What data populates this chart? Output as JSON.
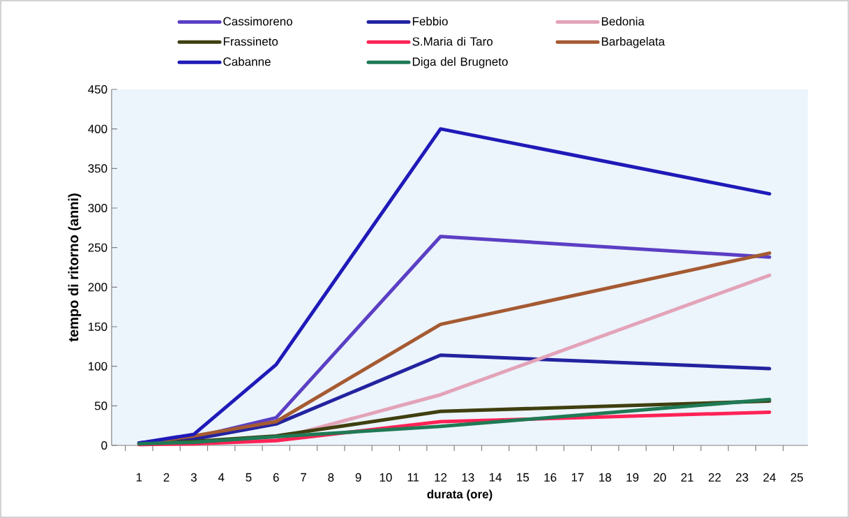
{
  "chart_data": {
    "type": "line",
    "xlabel": "durata (ore)",
    "ylabel": "tempo di ritorno (anni)",
    "x": [
      1,
      3,
      6,
      12,
      24
    ],
    "series": [
      {
        "name": "Cassimoreno",
        "color": "#5b3fc4",
        "values": [
          3,
          10,
          35,
          264,
          238
        ]
      },
      {
        "name": "Febbio",
        "color": "#2323a0",
        "values": [
          3,
          8,
          27,
          114,
          97
        ]
      },
      {
        "name": "Bedonia",
        "color": "#e3a3b8",
        "values": [
          1,
          2,
          8,
          64,
          215
        ]
      },
      {
        "name": "Frassineto",
        "color": "#3f3f0f",
        "values": [
          2,
          5,
          12,
          43,
          56
        ]
      },
      {
        "name": "S.Maria di Taro",
        "color": "#ff2255",
        "values": [
          1,
          2,
          6,
          30,
          42
        ]
      },
      {
        "name": "Barbagelata",
        "color": "#a55a32",
        "values": [
          2,
          12,
          30,
          153,
          243
        ]
      },
      {
        "name": "Cabanne",
        "color": "#1f1ab8",
        "values": [
          3,
          14,
          102,
          400,
          318
        ]
      },
      {
        "name": "Diga del Brugneto",
        "color": "#1f7a55",
        "values": [
          2,
          4,
          11,
          24,
          58
        ]
      }
    ],
    "xlim": [
      0,
      25.4
    ],
    "ylim": [
      0,
      450
    ],
    "xticks": [
      {
        "value": 0.5,
        "label": null
      },
      1,
      {
        "value": 1.5,
        "label": null
      },
      2,
      {
        "value": 2.5,
        "label": null
      },
      3,
      {
        "value": 3.5,
        "label": null
      },
      4,
      {
        "value": 4.5,
        "label": null
      },
      5,
      {
        "value": 5.5,
        "label": null
      },
      6,
      {
        "value": 6.5,
        "label": null
      },
      7,
      {
        "value": 7.5,
        "label": null
      },
      8,
      {
        "value": 8.5,
        "label": null
      },
      9,
      {
        "value": 9.5,
        "label": null
      },
      10,
      {
        "value": 10.5,
        "label": null
      },
      11,
      {
        "value": 11.5,
        "label": null
      },
      12,
      {
        "value": 12.5,
        "label": null
      },
      13,
      {
        "value": 13.5,
        "label": null
      },
      14,
      {
        "value": 14.5,
        "label": null
      },
      15,
      {
        "value": 15.5,
        "label": null
      },
      16,
      {
        "value": 16.5,
        "label": null
      },
      17,
      {
        "value": 17.5,
        "label": null
      },
      18,
      {
        "value": 18.5,
        "label": null
      },
      19,
      {
        "value": 19.5,
        "label": null
      },
      20,
      {
        "value": 20.5,
        "label": null
      },
      21,
      {
        "value": 21.5,
        "label": null
      },
      22,
      {
        "value": 22.5,
        "label": null
      },
      23,
      {
        "value": 23.5,
        "label": null
      },
      24,
      {
        "value": 24.5,
        "label": null
      },
      25
    ],
    "yticks": [
      0,
      50,
      100,
      150,
      200,
      250,
      300,
      350,
      400,
      450
    ],
    "grid": false,
    "legend": "top",
    "marker": "none",
    "line_style": "solid"
  }
}
